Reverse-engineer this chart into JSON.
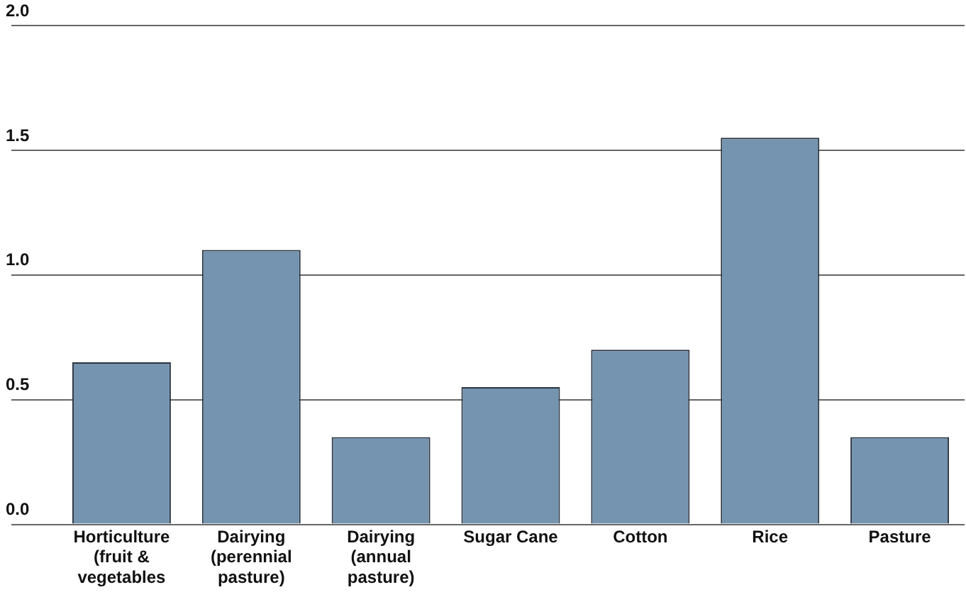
{
  "chart_data": {
    "type": "bar",
    "categories": [
      "Horticulture\n(fruit &\nvegetables",
      "Dairying\n(perennial\npasture)",
      "Dairying\n(annual\npasture)",
      "Sugar Cane",
      "Cotton",
      "Rice",
      "Pasture"
    ],
    "values": [
      0.65,
      1.1,
      0.35,
      0.55,
      0.7,
      1.55,
      0.35
    ],
    "color": "#7594af",
    "ylim": [
      0,
      2
    ],
    "yticks": [
      {
        "value": 0,
        "label": "0.0"
      },
      {
        "value": 0.5,
        "label": "0.5"
      },
      {
        "value": 1,
        "label": "1.0"
      },
      {
        "value": 1.5,
        "label": "1.5"
      },
      {
        "value": 2,
        "label": "2.0"
      }
    ],
    "grid": "y"
  }
}
